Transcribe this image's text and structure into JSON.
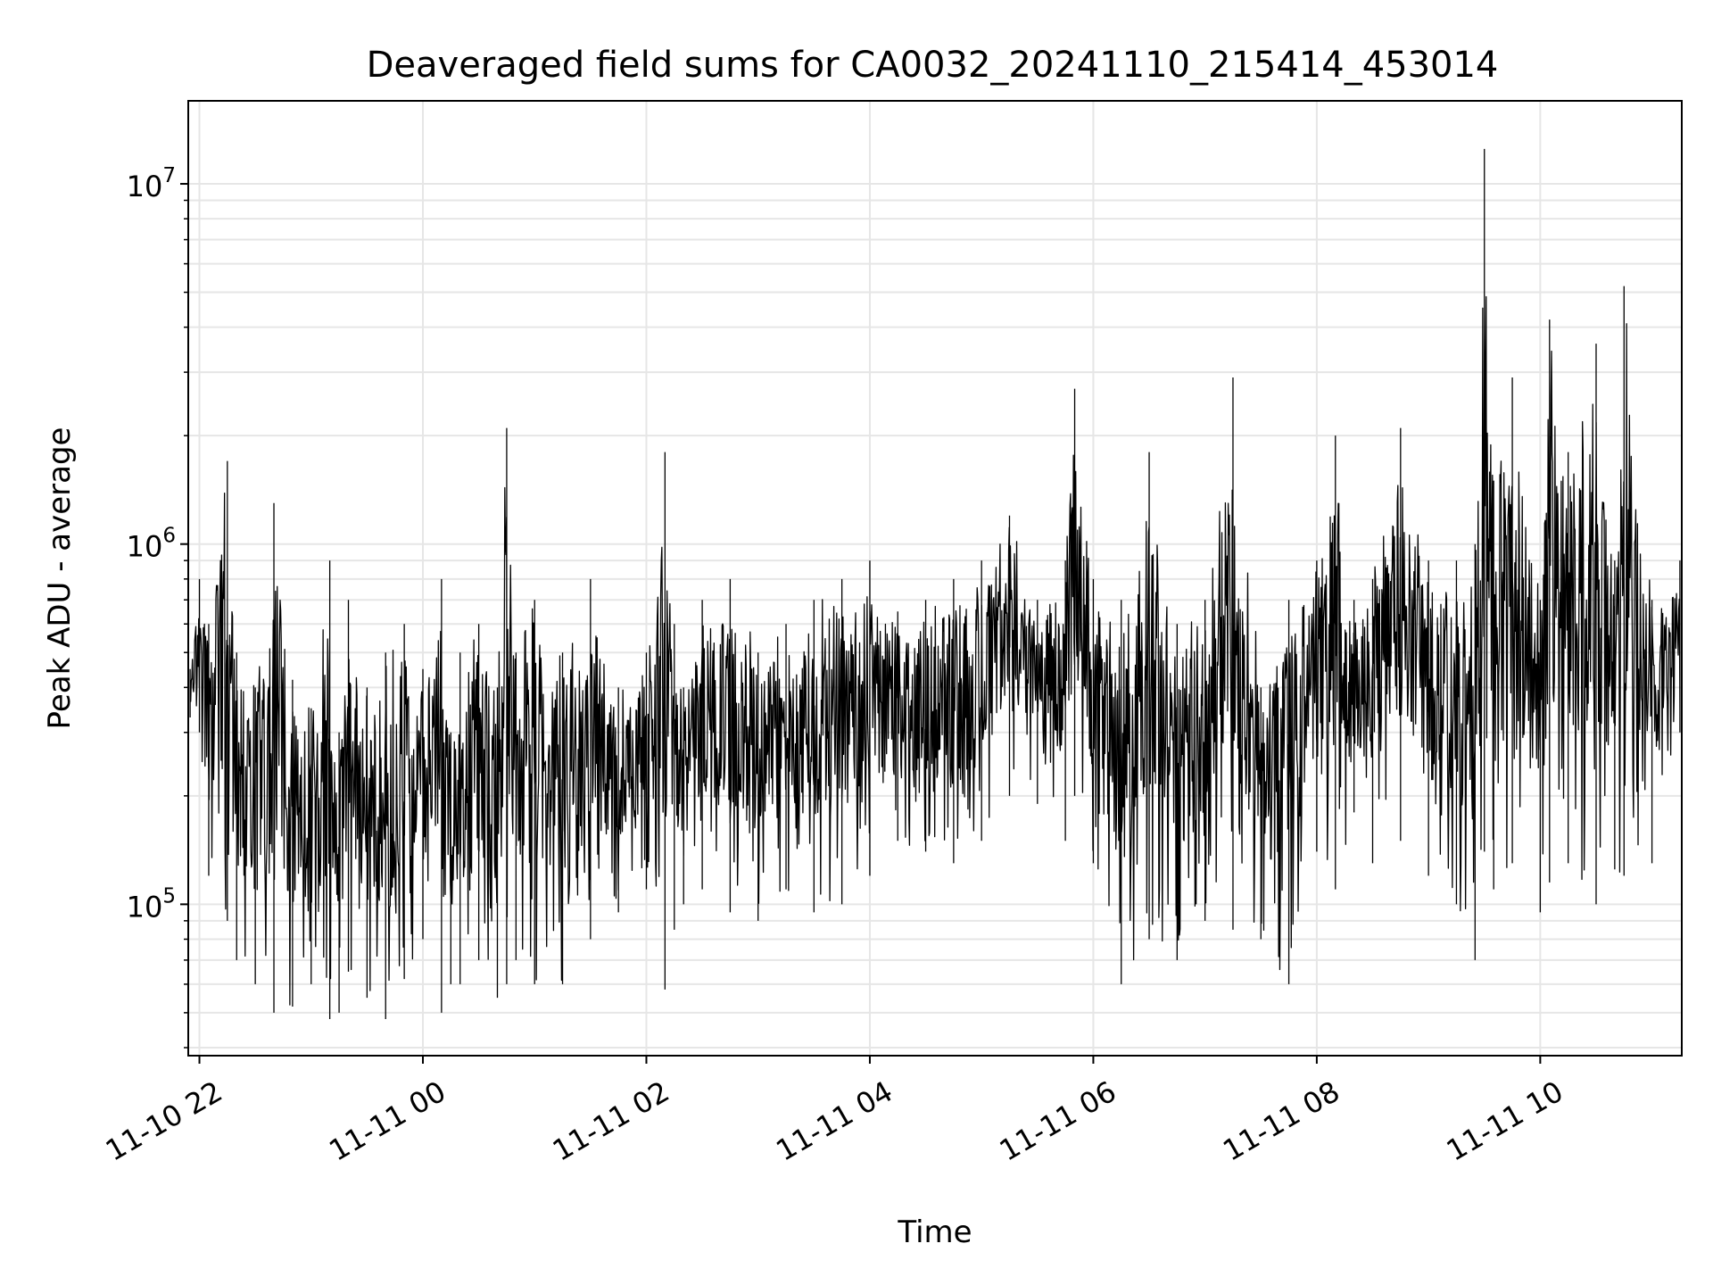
{
  "chart_data": {
    "type": "line",
    "title": "Deaveraged field sums for CA0032_20241110_215414_453014",
    "xlabel": "Time",
    "ylabel": "Peak ADU - average",
    "xscale": "time",
    "yscale": "log",
    "xlim": [
      "2024-11-10T21:54:00",
      "2024-11-11T11:16:00"
    ],
    "ylim": [
      38000,
      17000000
    ],
    "x_ticks": [
      {
        "value": "2024-11-10T22:00:00",
        "label": "11-10 22"
      },
      {
        "value": "2024-11-11T00:00:00",
        "label": "11-11 00"
      },
      {
        "value": "2024-11-11T02:00:00",
        "label": "11-11 02"
      },
      {
        "value": "2024-11-11T04:00:00",
        "label": "11-11 04"
      },
      {
        "value": "2024-11-11T06:00:00",
        "label": "11-11 06"
      },
      {
        "value": "2024-11-11T08:00:00",
        "label": "11-11 08"
      },
      {
        "value": "2024-11-11T10:00:00",
        "label": "11-11 10"
      }
    ],
    "y_ticks": [
      {
        "value": 100000,
        "base": "10",
        "exp": "5"
      },
      {
        "value": 1000000,
        "base": "10",
        "exp": "6"
      },
      {
        "value": 10000000,
        "base": "10",
        "exp": "7"
      }
    ],
    "grid": true,
    "line_color": "#000000",
    "grid_color": "#e6e6e6",
    "series": [
      {
        "x": [
          "2024-11-10T21:55:00",
          "2024-11-10T22:00:00",
          "2024-11-10T22:05:00",
          "2024-11-10T22:15:00",
          "2024-11-10T22:20:00",
          "2024-11-10T22:30:00",
          "2024-11-10T22:40:00",
          "2024-11-10T22:50:00",
          "2024-11-10T23:00:00",
          "2024-11-10T23:10:00",
          "2024-11-10T23:15:00",
          "2024-11-10T23:20:00",
          "2024-11-10T23:30:00",
          "2024-11-10T23:40:00",
          "2024-11-10T23:50:00",
          "2024-11-11T00:00:00",
          "2024-11-11T00:10:00",
          "2024-11-11T00:15:00",
          "2024-11-11T00:20:00",
          "2024-11-11T00:30:00",
          "2024-11-11T00:40:00",
          "2024-11-11T00:45:00",
          "2024-11-11T00:50:00",
          "2024-11-11T01:00:00",
          "2024-11-11T01:15:00",
          "2024-11-11T01:30:00",
          "2024-11-11T01:45:00",
          "2024-11-11T02:00:00",
          "2024-11-11T02:10:00",
          "2024-11-11T02:15:00",
          "2024-11-11T02:20:00",
          "2024-11-11T02:30:00",
          "2024-11-11T02:45:00",
          "2024-11-11T03:00:00",
          "2024-11-11T03:15:00",
          "2024-11-11T03:30:00",
          "2024-11-11T03:45:00",
          "2024-11-11T04:00:00",
          "2024-11-11T04:15:00",
          "2024-11-11T04:30:00",
          "2024-11-11T04:45:00",
          "2024-11-11T05:00:00",
          "2024-11-11T05:15:00",
          "2024-11-11T05:30:00",
          "2024-11-11T05:45:00",
          "2024-11-11T05:50:00",
          "2024-11-11T06:00:00",
          "2024-11-11T06:15:00",
          "2024-11-11T06:30:00",
          "2024-11-11T06:45:00",
          "2024-11-11T07:00:00",
          "2024-11-11T07:15:00",
          "2024-11-11T07:30:00",
          "2024-11-11T07:45:00",
          "2024-11-11T08:00:00",
          "2024-11-11T08:10:00",
          "2024-11-11T08:20:00",
          "2024-11-11T08:30:00",
          "2024-11-11T08:45:00",
          "2024-11-11T09:00:00",
          "2024-11-11T09:15:00",
          "2024-11-11T09:25:00",
          "2024-11-11T09:30:00",
          "2024-11-11T09:35:00",
          "2024-11-11T09:45:00",
          "2024-11-11T10:00:00",
          "2024-11-11T10:05:00",
          "2024-11-11T10:15:00",
          "2024-11-11T10:30:00",
          "2024-11-11T10:40:00",
          "2024-11-11T10:45:00",
          "2024-11-11T11:00:00",
          "2024-11-11T11:15:00"
        ],
        "y": [
          450000,
          800000,
          600000,
          1700000,
          500000,
          400000,
          1300000,
          420000,
          350000,
          900000,
          300000,
          700000,
          400000,
          500000,
          600000,
          450000,
          800000,
          300000,
          500000,
          600000,
          400000,
          2100000,
          500000,
          700000,
          500000,
          800000,
          400000,
          500000,
          1800000,
          600000,
          400000,
          700000,
          800000,
          500000,
          600000,
          700000,
          800000,
          900000,
          650000,
          700000,
          800000,
          900000,
          1200000,
          700000,
          900000,
          2700000,
          800000,
          700000,
          1800000,
          600000,
          700000,
          2900000,
          400000,
          700000,
          900000,
          2000000,
          700000,
          800000,
          2100000,
          900000,
          900000,
          1000000,
          12500000,
          1500000,
          2900000,
          700000,
          4200000,
          1800000,
          3600000,
          900000,
          5200000,
          700000,
          900000
        ],
        "y_min": [
          330000,
          300000,
          120000,
          90000,
          70000,
          60000,
          50000,
          52000,
          60000,
          48000,
          50000,
          65000,
          55000,
          48000,
          62000,
          80000,
          50000,
          60000,
          60000,
          70000,
          55000,
          60000,
          70000,
          60000,
          60000,
          80000,
          95000,
          110000,
          58000,
          85000,
          100000,
          110000,
          95000,
          90000,
          110000,
          95000,
          100000,
          120000,
          150000,
          140000,
          130000,
          150000,
          200000,
          190000,
          150000,
          200000,
          130000,
          60000,
          80000,
          70000,
          90000,
          85000,
          80000,
          60000,
          140000,
          110000,
          180000,
          130000,
          150000,
          120000,
          100000,
          70000,
          140000,
          110000,
          130000,
          95000,
          115000,
          130000,
          100000,
          125000,
          120000,
          130000,
          300000
        ]
      }
    ]
  }
}
